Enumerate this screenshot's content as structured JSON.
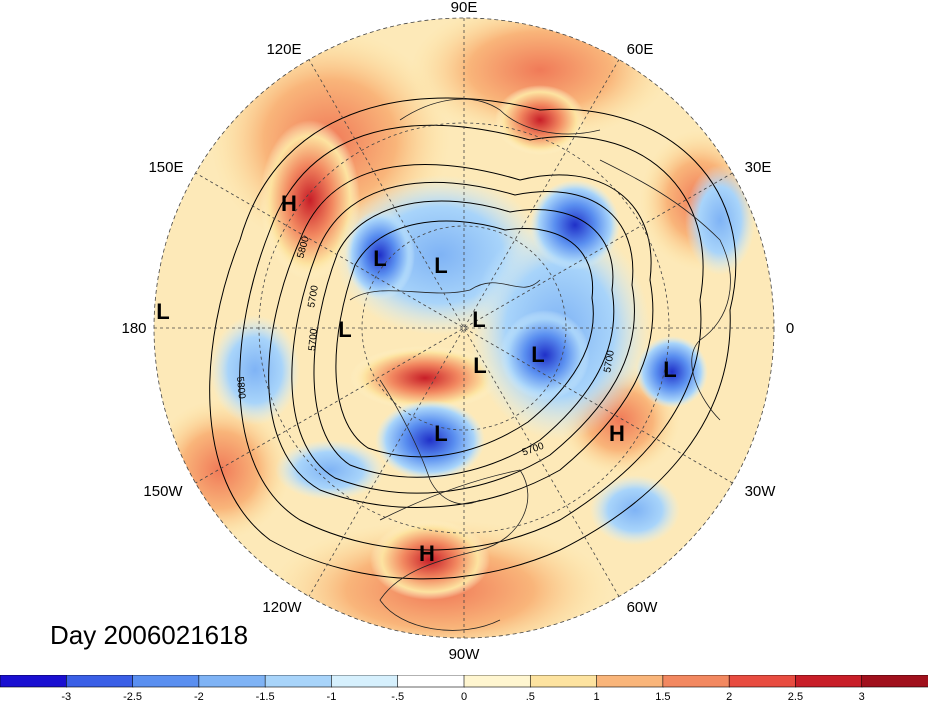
{
  "title": "Day 2006021618",
  "lon_labels": [
    {
      "text": "90E"
    },
    {
      "text": "60E"
    },
    {
      "text": "30E"
    },
    {
      "text": "0"
    },
    {
      "text": "30W"
    },
    {
      "text": "60W"
    },
    {
      "text": "90W"
    },
    {
      "text": "120W"
    },
    {
      "text": "150W"
    },
    {
      "text": "180"
    },
    {
      "text": "150E"
    },
    {
      "text": "120E"
    }
  ],
  "pressure_centers": [
    {
      "type": "H"
    },
    {
      "type": "L"
    },
    {
      "type": "L"
    },
    {
      "type": "L"
    },
    {
      "type": "L"
    },
    {
      "type": "L"
    },
    {
      "type": "L"
    },
    {
      "type": "L"
    },
    {
      "type": "L"
    },
    {
      "type": "L"
    },
    {
      "type": "H"
    },
    {
      "type": "H"
    }
  ],
  "contour_labels": [
    "5800",
    "5700",
    "5700",
    "5800",
    "5700",
    "5700"
  ],
  "colorbar": {
    "ticks": [
      "-3",
      "-2.5",
      "-2",
      "-1.5",
      "-1",
      "-.5",
      "0",
      ".5",
      "1",
      "1.5",
      "2",
      "2.5",
      "3"
    ],
    "colors": [
      "#1a0fd1",
      "#3a5fe6",
      "#5a8ff0",
      "#7fb3f5",
      "#a8d4fa",
      "#d6f0fd",
      "#ffffff",
      "#fff6d0",
      "#fde3a0",
      "#f9b57a",
      "#f28860",
      "#e84c40",
      "#c81e28",
      "#a0101c"
    ]
  }
}
